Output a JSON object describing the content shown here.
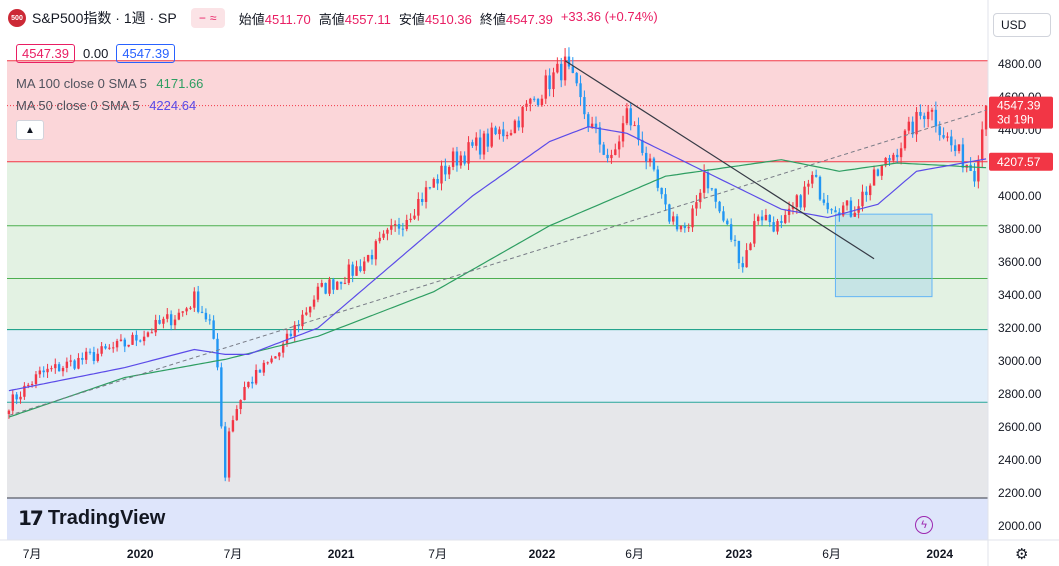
{
  "header": {
    "logo_text": "500",
    "symbol": "S&P500指数 · 1週 · SP",
    "toggle_minus": "−",
    "toggle_wave": "≈",
    "open_label": "始値",
    "open_value": "4511.70",
    "high_label": "高値",
    "high_value": "4557.11",
    "low_label": "安値",
    "low_value": "4510.36",
    "close_label": "終値",
    "close_value": "4547.39",
    "change": "+33.36 (+0.74%)"
  },
  "price_boxes": {
    "sell": "4547.39",
    "spread": "0.00",
    "buy": "4547.39"
  },
  "indicators": [
    {
      "label": "MA 100 close 0 SMA 5",
      "value": "4171.66",
      "color": "#2e9e62"
    },
    {
      "label": "MA 50 close 0 SMA 5",
      "value": "4224.64",
      "color": "#5b4be8"
    }
  ],
  "currency": "USD",
  "branding": "TradingView",
  "colors": {
    "up": "#f23645",
    "down": "#2196f3",
    "ma100": "#2e9e62",
    "ma50": "#5b4be8"
  },
  "chart_data": {
    "type": "candlestick",
    "interval": "1週",
    "y_axis_ticks": [
      "4800.00",
      "4600.00",
      "4400.00",
      "4200.00",
      "4000.00",
      "3800.00",
      "3600.00",
      "3400.00",
      "3200.00",
      "3000.00",
      "2800.00",
      "2600.00",
      "2400.00",
      "2200.00",
      "2000.00"
    ],
    "x_axis_labels": [
      "7月",
      "2020",
      "7月",
      "2021",
      "7月",
      "2022",
      "6月",
      "2023",
      "6月",
      "2024"
    ],
    "ylim": [
      1900,
      4950
    ],
    "last_price_label": "4547.39",
    "countdown_label": "3d 19h",
    "level_label": "4207.57",
    "horizontal_levels": [
      4820,
      4207.57,
      3820,
      3500,
      3190,
      2750,
      2170
    ],
    "zones": [
      {
        "from": 4207.57,
        "to": 4820,
        "color": "#fbd6d9"
      },
      {
        "from": 3190,
        "to": 4207.57,
        "color": "#e3f2e3"
      },
      {
        "from": 2750,
        "to": 3190,
        "color": "#e2eefa"
      },
      {
        "from": 2170,
        "to": 2750,
        "color": "#e6e7ea"
      },
      {
        "from": 1900,
        "to": 2170,
        "color": "#dee5fb"
      }
    ],
    "box": {
      "t_from": 214,
      "t_to": 239,
      "low": 3390,
      "high": 3890
    },
    "downtrend": {
      "t1": 144,
      "p1": 4820,
      "t2": 224,
      "p2": 3620
    },
    "uptrend": {
      "t1": 0,
      "p1": 2670,
      "t2": 253,
      "p2": 4520
    },
    "candle_keypoints": [
      [
        0,
        2740
      ],
      [
        8,
        2920
      ],
      [
        30,
        3100
      ],
      [
        45,
        3300
      ],
      [
        48,
        3380
      ],
      [
        52,
        3230
      ],
      [
        54,
        2960
      ],
      [
        56,
        2300
      ],
      [
        57,
        2590
      ],
      [
        61,
        2840
      ],
      [
        70,
        3050
      ],
      [
        80,
        3420
      ],
      [
        90,
        3560
      ],
      [
        100,
        3800
      ],
      [
        115,
        4220
      ],
      [
        130,
        4420
      ],
      [
        140,
        4700
      ],
      [
        144,
        4790
      ],
      [
        150,
        4450
      ],
      [
        156,
        4200
      ],
      [
        160,
        4500
      ],
      [
        164,
        4300
      ],
      [
        170,
        3900
      ],
      [
        176,
        3780
      ],
      [
        180,
        4150
      ],
      [
        184,
        3900
      ],
      [
        188,
        3700
      ],
      [
        190,
        3590
      ],
      [
        194,
        3900
      ],
      [
        200,
        3800
      ],
      [
        208,
        4100
      ],
      [
        212,
        3970
      ],
      [
        218,
        3910
      ],
      [
        224,
        4100
      ],
      [
        234,
        4420
      ],
      [
        238,
        4550
      ],
      [
        244,
        4300
      ],
      [
        248,
        4200
      ],
      [
        250,
        4150
      ],
      [
        253,
        4547.39
      ]
    ],
    "ma100_keypoints": [
      [
        0,
        2660
      ],
      [
        30,
        2900
      ],
      [
        56,
        3010
      ],
      [
        80,
        3150
      ],
      [
        110,
        3420
      ],
      [
        140,
        3820
      ],
      [
        170,
        4120
      ],
      [
        200,
        4220
      ],
      [
        215,
        4150
      ],
      [
        230,
        4200
      ],
      [
        253,
        4171.66
      ]
    ],
    "ma50_keypoints": [
      [
        0,
        2820
      ],
      [
        30,
        2960
      ],
      [
        48,
        3070
      ],
      [
        56,
        3040
      ],
      [
        62,
        3040
      ],
      [
        80,
        3200
      ],
      [
        100,
        3600
      ],
      [
        120,
        4000
      ],
      [
        140,
        4330
      ],
      [
        150,
        4420
      ],
      [
        160,
        4380
      ],
      [
        180,
        4150
      ],
      [
        200,
        3920
      ],
      [
        212,
        3870
      ],
      [
        225,
        3950
      ],
      [
        235,
        4150
      ],
      [
        253,
        4224.64
      ]
    ]
  }
}
